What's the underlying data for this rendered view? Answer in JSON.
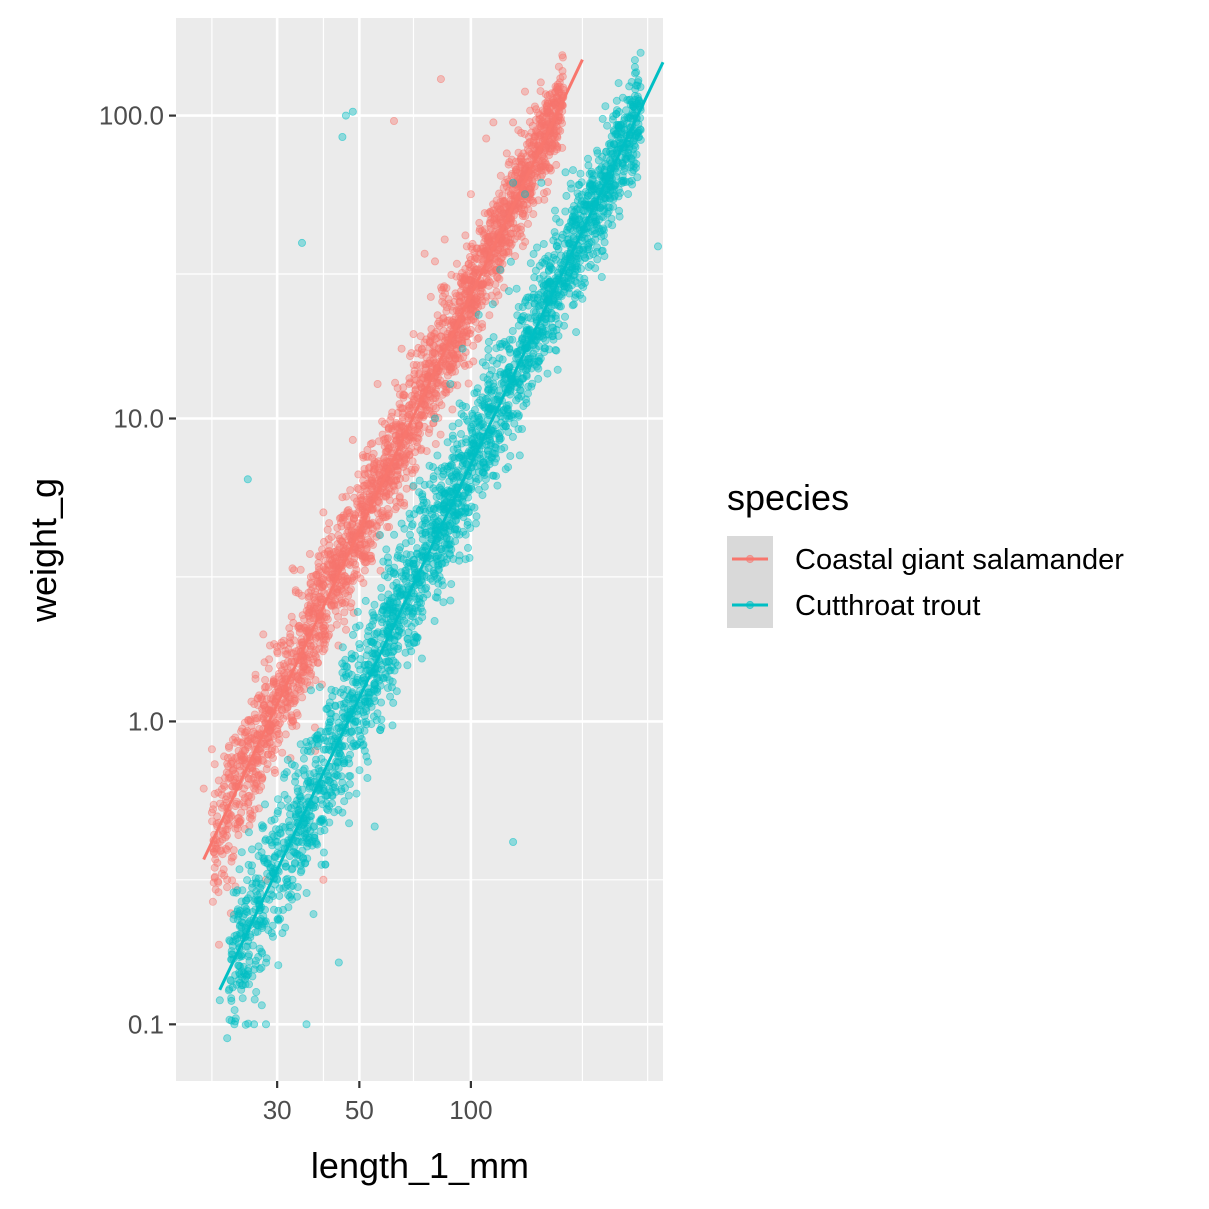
{
  "chart_data": {
    "type": "scatter",
    "xlabel": "length_1_mm",
    "ylabel": "weight_g",
    "x_scale": "log10",
    "y_scale": "log10",
    "xlim": [
      16,
      330
    ],
    "ylim": [
      0.065,
      210
    ],
    "x_ticks": [
      30,
      50,
      100
    ],
    "x_tick_labels": [
      "30",
      "50",
      "100"
    ],
    "y_ticks": [
      0.1,
      1,
      10,
      100
    ],
    "y_tick_labels": [
      "0.1",
      "1.0",
      "10.0",
      "100.0"
    ],
    "grid": true,
    "legend": {
      "title": "species",
      "position": "right"
    },
    "series": [
      {
        "name": "Coastal giant salamander",
        "color": "#F8766D",
        "fit_line": {
          "x": [
            19,
            200
          ],
          "y": [
            0.35,
            153
          ]
        },
        "fit_band": {
          "width": 0.09
        },
        "points": [
          [
            19,
            0.6
          ],
          [
            20,
            0.5
          ],
          [
            21,
            0.4
          ],
          [
            22,
            0.3
          ],
          [
            22,
            0.5
          ],
          [
            24,
            0.5
          ],
          [
            26,
            0.6
          ],
          [
            27,
            0.9
          ],
          [
            28,
            1.3
          ],
          [
            29,
            0.8
          ],
          [
            30,
            1.7
          ],
          [
            33,
            3.2
          ],
          [
            35,
            2.6
          ],
          [
            37,
            3.0
          ],
          [
            40,
            4.9
          ],
          [
            42,
            2.8
          ],
          [
            45,
            5.5
          ],
          [
            48,
            8.5
          ],
          [
            50,
            4.0
          ],
          [
            56,
            13.0
          ],
          [
            60,
            9.2
          ],
          [
            65,
            17.0
          ],
          [
            70,
            19.0
          ],
          [
            72,
            9.0
          ],
          [
            75,
            35.0
          ],
          [
            80,
            33.0
          ],
          [
            85,
            39.0
          ],
          [
            95,
            29.0
          ],
          [
            100,
            55.0
          ],
          [
            110,
            84.0
          ],
          [
            115,
            95.0
          ],
          [
            125,
            75.0
          ],
          [
            130,
            95.0
          ],
          [
            140,
            120.0
          ],
          [
            150,
            105.0
          ],
          [
            83,
            132.0
          ],
          [
            62,
            96.0
          ],
          [
            40,
            0.3
          ],
          [
            28,
            0.3
          ],
          [
            38,
            0.8
          ],
          [
            45,
            2.7
          ],
          [
            55,
            6.8
          ]
        ]
      },
      {
        "name": "Cutthroat trout",
        "color": "#00BFC4",
        "fit_line": {
          "x": [
            21,
            330
          ],
          "y": [
            0.13,
            150
          ]
        },
        "fit_band": {
          "width": 0.11
        },
        "points": [
          [
            21,
            0.12
          ],
          [
            22,
            0.09
          ],
          [
            23,
            0.1
          ],
          [
            24,
            0.13
          ],
          [
            25,
            0.15
          ],
          [
            26,
            0.1
          ],
          [
            28,
            0.1
          ],
          [
            29,
            0.2
          ],
          [
            30,
            0.3
          ],
          [
            31,
            0.2
          ],
          [
            33,
            0.3
          ],
          [
            35,
            0.4
          ],
          [
            36,
            0.1
          ],
          [
            38,
            0.55
          ],
          [
            40,
            0.6
          ],
          [
            42,
            0.8
          ],
          [
            45,
            0.5
          ],
          [
            47,
            1.2
          ],
          [
            50,
            1.8
          ],
          [
            52,
            2.5
          ],
          [
            55,
            0.45
          ],
          [
            60,
            3.2
          ],
          [
            65,
            4.5
          ],
          [
            70,
            6.0
          ],
          [
            75,
            4.4
          ],
          [
            80,
            10.0
          ],
          [
            88,
            13.0
          ],
          [
            95,
            17.0
          ],
          [
            105,
            22.0
          ],
          [
            112,
            9.0
          ],
          [
            120,
            31.0
          ],
          [
            130,
            60.0
          ],
          [
            140,
            55.0
          ],
          [
            155,
            60.0
          ],
          [
            180,
            65.0
          ],
          [
            320,
            37.0
          ],
          [
            45,
            85.0
          ],
          [
            46,
            100.0
          ],
          [
            48,
            103.0
          ],
          [
            35,
            38.0
          ],
          [
            25,
            6.3
          ],
          [
            130,
            0.4
          ],
          [
            44,
            0.16
          ]
        ]
      }
    ]
  }
}
